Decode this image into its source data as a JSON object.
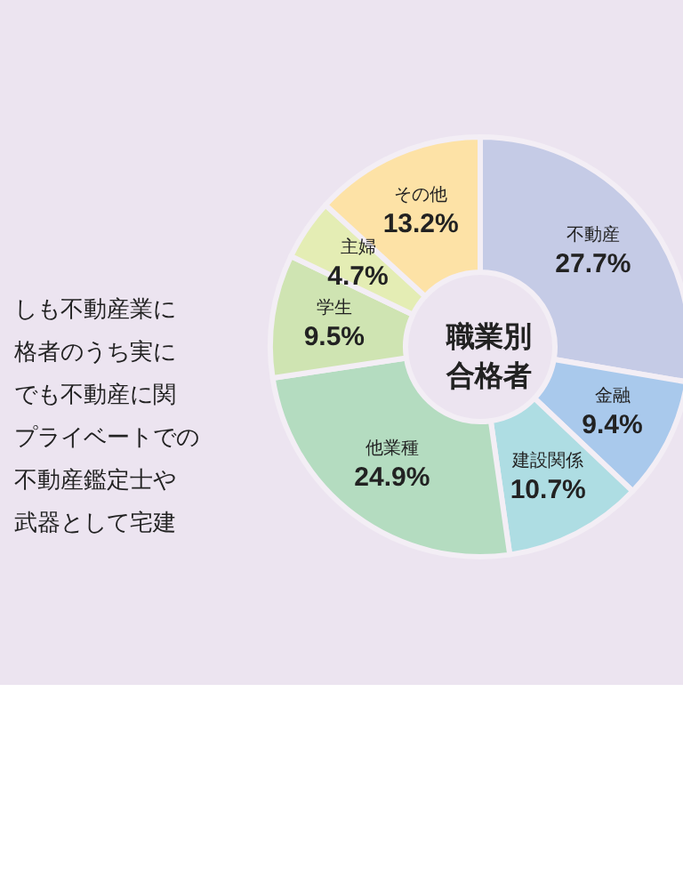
{
  "chart_data": {
    "type": "donut",
    "title": "職業別合格者",
    "categories": [
      "不動産",
      "金融",
      "建設関係",
      "他業種",
      "学生",
      "主婦",
      "その他"
    ],
    "values": [
      27.7,
      9.4,
      10.7,
      24.9,
      9.5,
      4.7,
      13.2
    ],
    "value_labels": [
      "27.7%",
      "9.4%",
      "10.7%",
      "24.9%",
      "9.5%",
      "4.7%",
      "13.2%"
    ],
    "colors": [
      "#c5cbe6",
      "#a9c9ec",
      "#aedde3",
      "#b4dcc0",
      "#cfe4b2",
      "#e4edb4",
      "#fde2a6"
    ],
    "annotations": [
      "しも不動産業に",
      "格者のうち実に",
      "でも不動産に関",
      "プライベートでの",
      "不動産鑑定士や",
      "武器として宅建"
    ],
    "legend": false
  }
}
